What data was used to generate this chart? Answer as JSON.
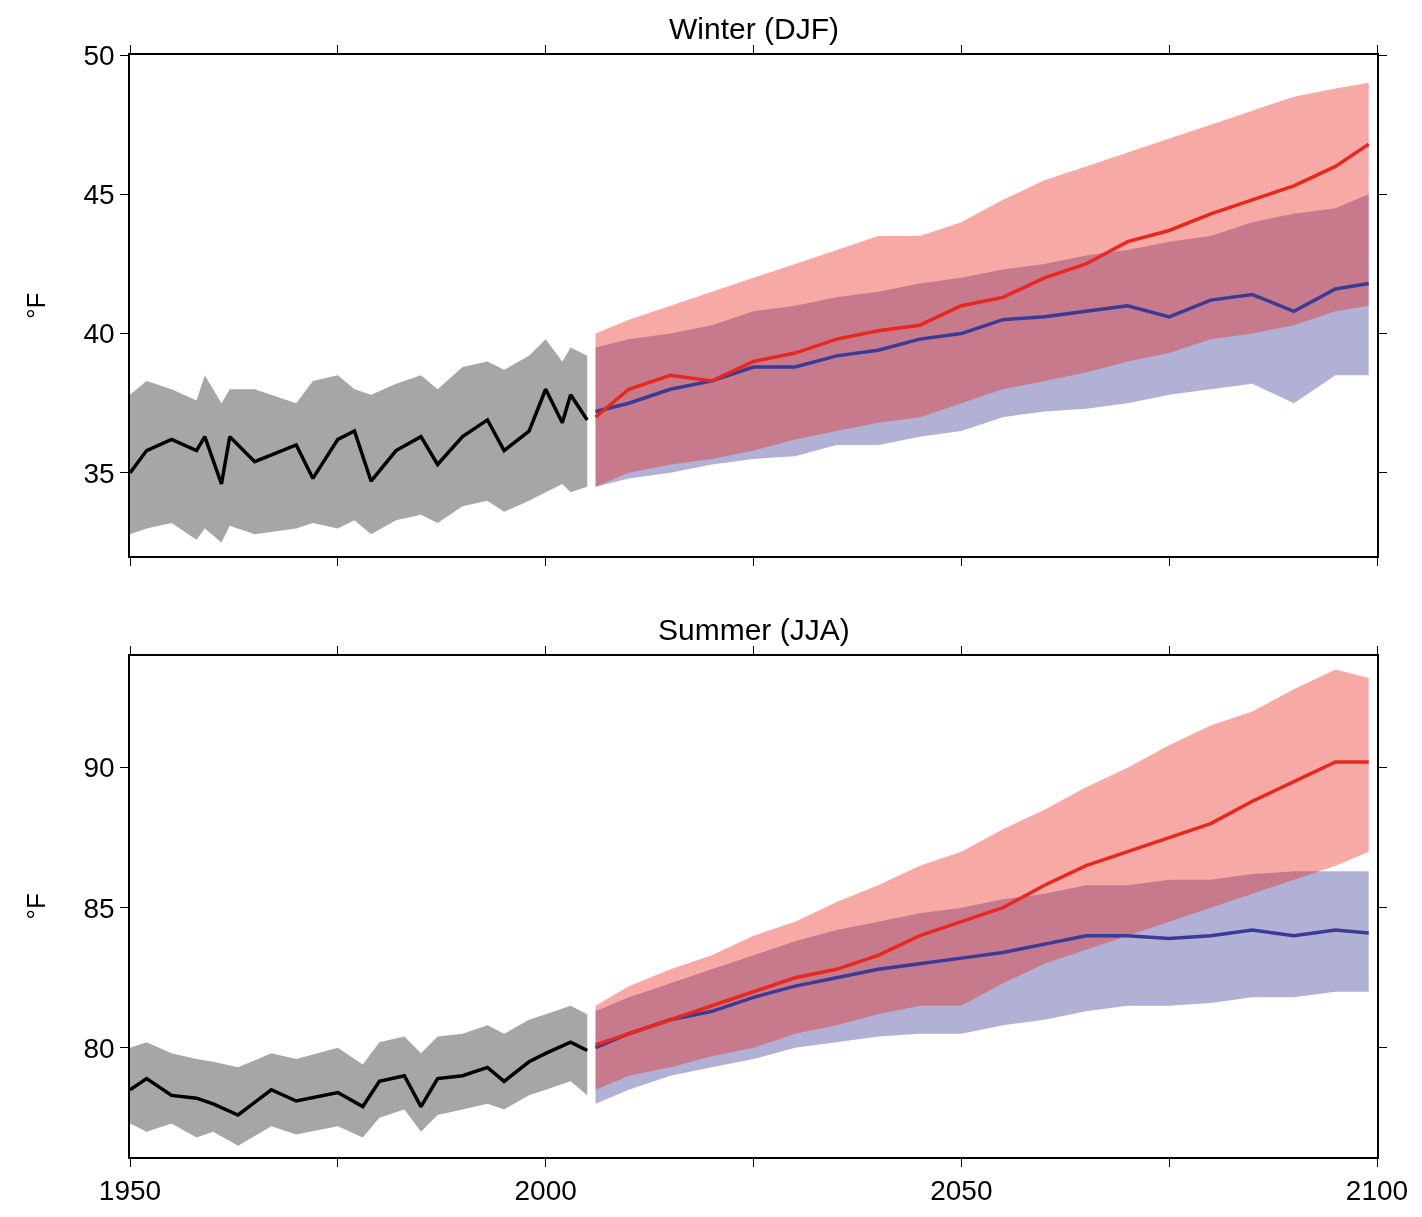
{
  "chart_data": [
    {
      "type": "line",
      "title": "Winter (DJF)",
      "ylabel": "°F",
      "xlim": [
        1950,
        2100
      ],
      "xticks": [
        {
          "value": 1950,
          "label": null
        },
        {
          "value": 1975,
          "label": null
        },
        {
          "value": 2000,
          "label": null
        },
        {
          "value": 2025,
          "label": null
        },
        {
          "value": 2050,
          "label": null
        },
        {
          "value": 2075,
          "label": null
        },
        {
          "value": 2100,
          "label": null
        }
      ],
      "ylim": [
        32,
        50
      ],
      "yticks": [
        35,
        40,
        45,
        50
      ],
      "tick_labels": "y",
      "marker": "none",
      "line_style": "solid",
      "series": [
        {
          "color": "#000000",
          "x": [
            1950,
            1952,
            1955,
            1958,
            1959,
            1961,
            1962,
            1965,
            1970,
            1972,
            1975,
            1977,
            1979,
            1982,
            1985,
            1987,
            1990,
            1993,
            1995,
            1998,
            2000,
            2002,
            2003,
            2005
          ],
          "values": [
            35.0,
            35.8,
            36.2,
            35.8,
            36.3,
            34.6,
            36.3,
            35.4,
            36.0,
            34.8,
            36.2,
            36.5,
            34.7,
            35.8,
            36.3,
            35.3,
            36.3,
            36.9,
            35.8,
            36.5,
            38.0,
            36.8,
            37.8,
            36.9
          ],
          "lower": [
            32.8,
            33.0,
            33.2,
            32.6,
            33.0,
            32.5,
            33.1,
            32.8,
            33.0,
            33.2,
            33.0,
            33.3,
            32.8,
            33.3,
            33.5,
            33.2,
            33.8,
            34.0,
            33.6,
            34.0,
            34.3,
            34.6,
            34.3,
            34.5
          ],
          "upper": [
            37.8,
            38.3,
            38.0,
            37.6,
            38.5,
            37.5,
            38.0,
            38.0,
            37.5,
            38.3,
            38.5,
            38.0,
            37.8,
            38.2,
            38.5,
            38.0,
            38.8,
            39.0,
            38.7,
            39.2,
            39.8,
            39.0,
            39.5,
            39.2
          ]
        },
        {
          "color": "#3b3b96",
          "x": [
            2006,
            2010,
            2015,
            2020,
            2025,
            2030,
            2035,
            2040,
            2045,
            2050,
            2055,
            2060,
            2065,
            2070,
            2075,
            2080,
            2085,
            2090,
            2095,
            2099
          ],
          "values": [
            37.2,
            37.5,
            38.0,
            38.3,
            38.8,
            38.8,
            39.2,
            39.4,
            39.8,
            40.0,
            40.5,
            40.6,
            40.8,
            41.0,
            40.6,
            41.2,
            41.4,
            40.8,
            41.6,
            41.8
          ],
          "lower": [
            34.5,
            34.8,
            35.0,
            35.3,
            35.5,
            35.6,
            36.0,
            36.0,
            36.3,
            36.5,
            37.0,
            37.2,
            37.3,
            37.5,
            37.8,
            38.0,
            38.2,
            37.5,
            38.5,
            38.5
          ],
          "upper": [
            39.5,
            39.8,
            40.0,
            40.3,
            40.8,
            41.0,
            41.3,
            41.5,
            41.8,
            42.0,
            42.3,
            42.5,
            42.8,
            43.0,
            43.3,
            43.5,
            44.0,
            44.3,
            44.5,
            45.0
          ]
        },
        {
          "color": "#e8281e",
          "x": [
            2006,
            2010,
            2015,
            2020,
            2025,
            2030,
            2035,
            2040,
            2045,
            2050,
            2055,
            2060,
            2065,
            2070,
            2075,
            2080,
            2085,
            2090,
            2095,
            2099
          ],
          "values": [
            37.0,
            38.0,
            38.5,
            38.3,
            39.0,
            39.3,
            39.8,
            40.1,
            40.3,
            41.0,
            41.3,
            42.0,
            42.5,
            43.3,
            43.7,
            44.3,
            44.8,
            45.3,
            46.0,
            46.8
          ],
          "lower": [
            34.5,
            35.0,
            35.3,
            35.5,
            35.8,
            36.2,
            36.5,
            36.8,
            37.0,
            37.5,
            38.0,
            38.3,
            38.6,
            39.0,
            39.3,
            39.8,
            40.0,
            40.3,
            40.8,
            41.0
          ],
          "upper": [
            40.0,
            40.5,
            41.0,
            41.5,
            42.0,
            42.5,
            43.0,
            43.5,
            43.5,
            44.0,
            44.8,
            45.5,
            46.0,
            46.5,
            47.0,
            47.5,
            48.0,
            48.5,
            48.8,
            49.0
          ]
        }
      ]
    },
    {
      "type": "line",
      "title": "Summer (JJA)",
      "ylabel": "°F",
      "xlim": [
        1950,
        2100
      ],
      "xticks": [
        1950,
        {
          "value": 1975,
          "label": null
        },
        2000,
        {
          "value": 2025,
          "label": null
        },
        2050,
        {
          "value": 2075,
          "label": null
        },
        2100
      ],
      "ylim": [
        76.1,
        94
      ],
      "yticks": [
        80,
        85,
        90
      ],
      "marker": "none",
      "line_style": "solid",
      "series": [
        {
          "color": "#000000",
          "x": [
            1950,
            1952,
            1955,
            1958,
            1960,
            1963,
            1967,
            1970,
            1975,
            1978,
            1980,
            1983,
            1985,
            1987,
            1990,
            1993,
            1995,
            1998,
            2000,
            2003,
            2005
          ],
          "values": [
            78.5,
            78.9,
            78.3,
            78.2,
            78.0,
            77.6,
            78.5,
            78.1,
            78.4,
            77.9,
            78.8,
            79.0,
            77.9,
            78.9,
            79.0,
            79.3,
            78.8,
            79.5,
            79.8,
            80.2,
            79.9
          ],
          "lower": [
            77.3,
            77.0,
            77.3,
            76.8,
            77.0,
            76.5,
            77.2,
            76.9,
            77.2,
            76.8,
            77.5,
            77.8,
            77.0,
            77.6,
            77.8,
            78.0,
            77.8,
            78.3,
            78.5,
            78.8,
            78.3
          ],
          "upper": [
            80.0,
            80.2,
            79.8,
            79.6,
            79.5,
            79.3,
            79.8,
            79.6,
            80.0,
            79.4,
            80.2,
            80.4,
            79.8,
            80.4,
            80.5,
            80.8,
            80.5,
            81.0,
            81.2,
            81.5,
            81.2
          ]
        },
        {
          "color": "#3b3b96",
          "x": [
            2006,
            2010,
            2015,
            2020,
            2025,
            2030,
            2035,
            2040,
            2045,
            2050,
            2055,
            2060,
            2065,
            2070,
            2075,
            2080,
            2085,
            2090,
            2095,
            2099
          ],
          "values": [
            80.0,
            80.5,
            81.0,
            81.3,
            81.8,
            82.2,
            82.5,
            82.8,
            83.0,
            83.2,
            83.4,
            83.7,
            84.0,
            84.0,
            83.9,
            84.0,
            84.2,
            84.0,
            84.2,
            84.1
          ],
          "lower": [
            78.0,
            78.5,
            79.0,
            79.3,
            79.6,
            80.0,
            80.2,
            80.4,
            80.5,
            80.5,
            80.8,
            81.0,
            81.3,
            81.5,
            81.5,
            81.6,
            81.8,
            81.8,
            82.0,
            82.0
          ],
          "upper": [
            81.3,
            81.8,
            82.3,
            82.8,
            83.3,
            83.8,
            84.2,
            84.5,
            84.8,
            85.0,
            85.3,
            85.5,
            85.8,
            85.8,
            86.0,
            86.0,
            86.2,
            86.3,
            86.3,
            86.3
          ]
        },
        {
          "color": "#e8281e",
          "x": [
            2006,
            2010,
            2015,
            2020,
            2025,
            2030,
            2035,
            2040,
            2045,
            2050,
            2055,
            2060,
            2065,
            2070,
            2075,
            2080,
            2085,
            2090,
            2095,
            2099
          ],
          "values": [
            80.1,
            80.5,
            81.0,
            81.5,
            82.0,
            82.5,
            82.8,
            83.3,
            84.0,
            84.5,
            85.0,
            85.8,
            86.5,
            87.0,
            87.5,
            88.0,
            88.8,
            89.5,
            90.2,
            90.2
          ],
          "lower": [
            78.5,
            79.0,
            79.3,
            79.7,
            80.0,
            80.5,
            80.8,
            81.2,
            81.5,
            81.5,
            82.3,
            83.0,
            83.5,
            84.0,
            84.5,
            85.0,
            85.5,
            86.0,
            86.5,
            87.0
          ],
          "upper": [
            81.5,
            82.2,
            82.8,
            83.3,
            84.0,
            84.5,
            85.2,
            85.8,
            86.5,
            87.0,
            87.8,
            88.5,
            89.3,
            90.0,
            90.8,
            91.5,
            92.0,
            92.8,
            93.5,
            93.2
          ]
        }
      ]
    }
  ]
}
